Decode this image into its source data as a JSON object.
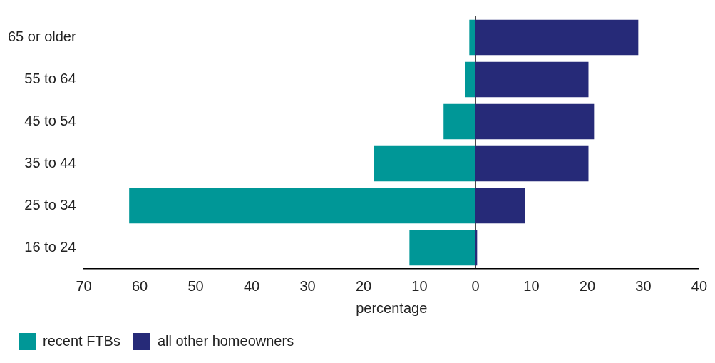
{
  "chart_data": {
    "type": "bar",
    "orientation": "horizontal",
    "stacked": true,
    "categories": [
      "65 or older",
      "55 to 64",
      "45 to 54",
      "35 to 44",
      "25 to 34",
      "16 to 24"
    ],
    "series": [
      {
        "name": "recent FTBs",
        "color": "#009797",
        "values": [
          -1.1,
          -1.9,
          -5.7,
          -18.2,
          -61.9,
          -11.8
        ]
      },
      {
        "name": "all other homeowners",
        "color": "#262a78",
        "values": [
          29.1,
          20.2,
          21.2,
          20.2,
          8.8,
          0.3
        ]
      }
    ],
    "xlabel": "percentage",
    "xlim": [
      -70,
      40
    ],
    "xticks": [
      {
        "value": -70,
        "label": "70"
      },
      {
        "value": -60,
        "label": "60"
      },
      {
        "value": -50,
        "label": "50"
      },
      {
        "value": -40,
        "label": "40"
      },
      {
        "value": -30,
        "label": "30"
      },
      {
        "value": -20,
        "label": "20"
      },
      {
        "value": -10,
        "label": "10"
      },
      0,
      10,
      20,
      30,
      40
    ],
    "ref_lines": [
      {
        "axis": "x",
        "value": 0,
        "color": "#000000"
      }
    ],
    "grid": false,
    "legend": "bottom left"
  }
}
